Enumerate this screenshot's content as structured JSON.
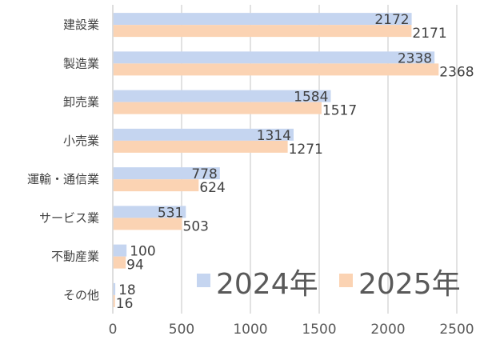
{
  "chart_data": {
    "type": "bar",
    "orientation": "horizontal",
    "categories": [
      "建設業",
      "製造業",
      "卸売業",
      "小売業",
      "運輸・通信業",
      "サービス業",
      "不動産業",
      "その他"
    ],
    "series": [
      {
        "name": "2024年",
        "values": [
          2172,
          2338,
          1584,
          1314,
          778,
          531,
          100,
          18
        ],
        "color": "#c5d5f0"
      },
      {
        "name": "2025年",
        "values": [
          2171,
          2368,
          1517,
          1271,
          624,
          503,
          94,
          16
        ],
        "color": "#fbd3b3"
      }
    ],
    "xticks": [
      "0",
      "500",
      "1000",
      "1500",
      "2000",
      "2500"
    ],
    "xlim": [
      0,
      2500
    ],
    "grid": "vertical",
    "legend_position": "bottom-right",
    "title": "",
    "xlabel": "",
    "ylabel": ""
  }
}
